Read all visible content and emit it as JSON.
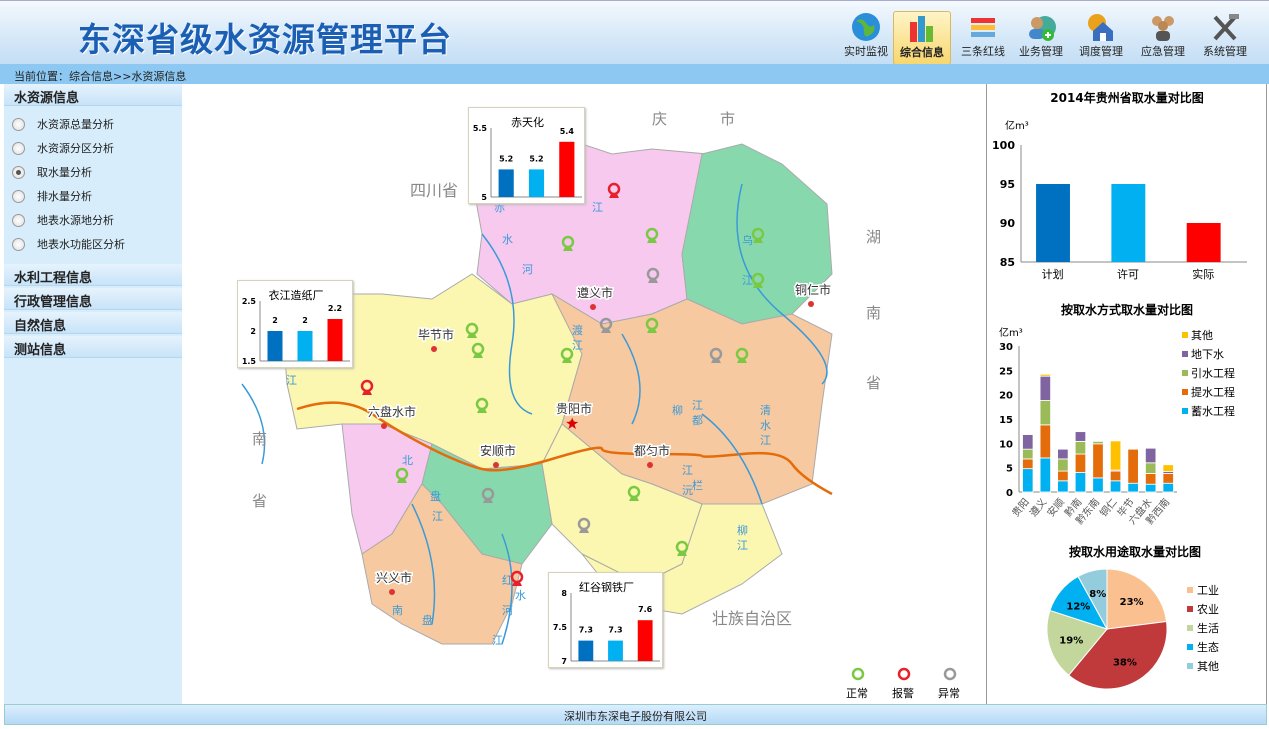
{
  "header": {
    "title": "东深省级水资源管理平台",
    "nav": [
      {
        "label": "实时监视",
        "icon": "globe-icon"
      },
      {
        "label": "综合信息",
        "icon": "bar-chart-icon",
        "active": true
      },
      {
        "label": "三条红线",
        "icon": "lines-icon"
      },
      {
        "label": "业务管理",
        "icon": "user-add-icon"
      },
      {
        "label": "调度管理",
        "icon": "gear-house-icon"
      },
      {
        "label": "应急管理",
        "icon": "group-icon"
      },
      {
        "label": "系统管理",
        "icon": "tools-icon"
      }
    ]
  },
  "breadcrumb": "当前位置：综合信息>>水资源信息",
  "sidebar": {
    "sections": [
      {
        "title": "水资源信息",
        "items": [
          {
            "label": "水资源总量分析"
          },
          {
            "label": "水资源分区分析"
          },
          {
            "label": "取水量分析",
            "selected": true
          },
          {
            "label": "排水量分析"
          },
          {
            "label": "地表水源地分析"
          },
          {
            "label": "地表水功能区分析"
          }
        ]
      },
      {
        "title": "水利工程信息"
      },
      {
        "title": "行政管理信息"
      },
      {
        "title": "自然信息"
      },
      {
        "title": "测站信息"
      }
    ]
  },
  "map": {
    "neighbors": [
      "四川省",
      "庆",
      "市",
      "湖",
      "南",
      "省",
      "南",
      "省",
      "壮族自治区"
    ],
    "cities": [
      "遵义市",
      "铜仁市",
      "毕节市",
      "六盘水市",
      "贵阳市",
      "安顺市",
      "都匀市",
      "兴义市"
    ],
    "rivers": [
      "赤",
      "水",
      "河",
      "乌",
      "江",
      "江",
      "渡",
      "江",
      "北",
      "盘",
      "江",
      "南",
      "盘",
      "江",
      "红",
      "水",
      "河",
      "清",
      "水",
      "江",
      "柳",
      "江",
      "沅",
      "江",
      "都",
      "柳",
      "江",
      "栏",
      "江"
    ],
    "legend": [
      {
        "label": "正常",
        "color": "#7ac943"
      },
      {
        "label": "报警",
        "color": "#e8202a"
      },
      {
        "label": "异常",
        "color": "#999999"
      }
    ],
    "mini_charts": [
      {
        "title": "赤天化",
        "ylim": [
          5,
          5.5
        ],
        "ticks": [
          "5",
          "5.5"
        ],
        "values": [
          5.2,
          5.2,
          5.4
        ],
        "labels": [
          "5.2",
          "5.2",
          "5.4"
        ]
      },
      {
        "title": "衣江造纸厂",
        "ylim": [
          1.5,
          2.5
        ],
        "ticks": [
          "1.5",
          "2",
          "2.5"
        ],
        "values": [
          2,
          2,
          2.2
        ],
        "labels": [
          "2",
          "2",
          "2.2"
        ]
      },
      {
        "title": "红谷钢铁厂",
        "ylim": [
          7,
          8
        ],
        "ticks": [
          "7",
          "7.5",
          "8"
        ],
        "values": [
          7.3,
          7.3,
          7.6
        ],
        "labels": [
          "7.3",
          "7.3",
          "7.6"
        ]
      }
    ],
    "bar_colors": [
      "#0070c0",
      "#00b0f0",
      "#ff0000"
    ]
  },
  "chart_data": [
    {
      "type": "bar",
      "title": "2014年贵州省取水量对比图",
      "ylabel": "亿m³",
      "categories": [
        "计划",
        "许可",
        "实际"
      ],
      "values": [
        95,
        95,
        90
      ],
      "ylim": [
        85,
        100
      ],
      "yticks": [
        "85",
        "90",
        "95",
        "100"
      ],
      "colors": [
        "#0070c0",
        "#00b0f0",
        "#ff0000"
      ],
      "grid": false
    },
    {
      "type": "bar",
      "stacked": true,
      "title": "按取水方式取水量对比图",
      "ylabel": "亿m³",
      "categories": [
        "贵阳",
        "遵义",
        "安顺",
        "黔南",
        "黔东南",
        "铜仁",
        "毕节",
        "六盘水",
        "黔西南"
      ],
      "ylim": [
        0,
        30
      ],
      "yticks": [
        "0",
        "5",
        "10",
        "15",
        "20",
        "25",
        "30"
      ],
      "legend": "right",
      "series": [
        {
          "name": "蓄水工程",
          "color": "#00b0f0",
          "values": [
            4.8,
            7,
            2.3,
            4,
            2.9,
            2.3,
            1.8,
            1.6,
            1.8
          ]
        },
        {
          "name": "提水工程",
          "color": "#e46c0a",
          "values": [
            2,
            6.8,
            2,
            3.8,
            7,
            2,
            7,
            2.2,
            2
          ]
        },
        {
          "name": "引水工程",
          "color": "#9bbb59",
          "values": [
            2,
            5,
            2.5,
            2.6,
            0.5,
            0,
            0,
            2.2,
            0
          ]
        },
        {
          "name": "地下水",
          "color": "#8064a2",
          "values": [
            3,
            5,
            2,
            2,
            0,
            0.2,
            0,
            3,
            0.4
          ]
        },
        {
          "name": "其他",
          "color": "#ffc000",
          "values": [
            0,
            0.4,
            0,
            0,
            0,
            6,
            0,
            0,
            1.4
          ]
        }
      ]
    },
    {
      "type": "pie",
      "title": "按取水用途取水量对比图",
      "legend": "right",
      "slices": [
        {
          "name": "工业",
          "value": 23,
          "label": "23%",
          "color": "#fac090"
        },
        {
          "name": "农业",
          "value": 38,
          "label": "38%",
          "color": "#c0393b"
        },
        {
          "name": "生活",
          "value": 19,
          "label": "19%",
          "color": "#c3d69b"
        },
        {
          "name": "生态",
          "value": 12,
          "label": "12%",
          "color": "#00b0f0"
        },
        {
          "name": "其他",
          "value": 8,
          "label": "8%",
          "color": "#93cddd"
        }
      ]
    }
  ],
  "footer": "深圳市东深电子股份有限公司"
}
